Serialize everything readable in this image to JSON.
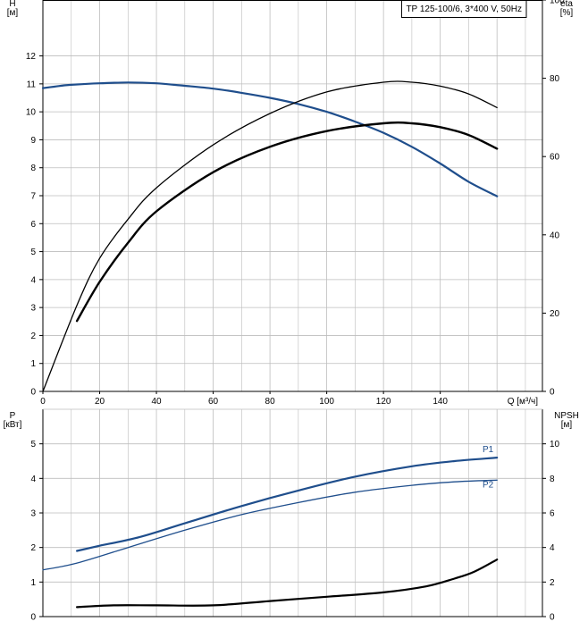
{
  "colors": {
    "grid": "#bdbdbd",
    "axis": "#000000",
    "blue": "#1f4e8c",
    "black": "#000000"
  },
  "chart_data": [
    {
      "type": "line",
      "title": "TP 125-100/6, 3*400 V, 50Hz",
      "xlabel": "Q [м³/ч]",
      "ylabel": "H\n[м]",
      "y2label": "eta\n[%]",
      "xlim": [
        0,
        160
      ],
      "ylim": [
        0,
        14
      ],
      "y2lim": [
        0,
        100
      ],
      "xticks": [
        0,
        20,
        40,
        60,
        80,
        100,
        120,
        140
      ],
      "yticks": [
        0,
        1,
        2,
        3,
        4,
        5,
        6,
        7,
        8,
        9,
        10,
        11,
        12
      ],
      "y2ticks": [
        0,
        20,
        40,
        60,
        80,
        100
      ],
      "grid": true,
      "series": [
        {
          "role": "H",
          "axis": "left",
          "color": "blue",
          "width": 2.2,
          "points": [
            [
              0,
              10.85
            ],
            [
              4,
              10.9
            ],
            [
              8,
              10.95
            ],
            [
              12,
              10.98
            ],
            [
              20,
              11.02
            ],
            [
              30,
              11.05
            ],
            [
              40,
              11.02
            ],
            [
              50,
              10.93
            ],
            [
              60,
              10.83
            ],
            [
              70,
              10.68
            ],
            [
              80,
              10.5
            ],
            [
              90,
              10.28
            ],
            [
              100,
              10.0
            ],
            [
              110,
              9.65
            ],
            [
              120,
              9.25
            ],
            [
              130,
              8.75
            ],
            [
              140,
              8.15
            ],
            [
              150,
              7.5
            ],
            [
              160,
              6.98
            ]
          ]
        },
        {
          "role": "eta pump",
          "axis": "right",
          "color": "black",
          "width": 1.3,
          "points": [
            [
              0,
              0
            ],
            [
              12,
              22
            ],
            [
              20,
              34
            ],
            [
              30,
              44
            ],
            [
              40,
              52
            ],
            [
              60,
              63
            ],
            [
              80,
              71
            ],
            [
              100,
              76.5
            ],
            [
              120,
              79
            ],
            [
              130,
              79
            ],
            [
              140,
              78
            ],
            [
              150,
              76
            ],
            [
              160,
              72.5
            ]
          ]
        },
        {
          "role": "eta total",
          "axis": "right",
          "color": "black",
          "width": 2.4,
          "points": [
            [
              12,
              18
            ],
            [
              20,
              28
            ],
            [
              30,
              38
            ],
            [
              40,
              46
            ],
            [
              60,
              56
            ],
            [
              80,
              62.5
            ],
            [
              100,
              66.5
            ],
            [
              120,
              68.5
            ],
            [
              130,
              68.5
            ],
            [
              140,
              67.5
            ],
            [
              150,
              65.5
            ],
            [
              160,
              62
            ]
          ]
        }
      ]
    },
    {
      "type": "line",
      "xlabel": "",
      "ylabel": "P\n[кВт]",
      "y2label": "NPSH\n[м]",
      "xlim": [
        0,
        160
      ],
      "ylim": [
        0,
        6
      ],
      "y2lim": [
        0,
        12
      ],
      "yticks": [
        0,
        1,
        2,
        3,
        4,
        5
      ],
      "y2ticks": [
        0,
        2,
        4,
        6,
        8,
        10
      ],
      "grid": true,
      "series": [
        {
          "name": "P1",
          "axis": "left",
          "color": "blue",
          "width": 2.2,
          "points": [
            [
              12,
              1.9
            ],
            [
              20,
              2.05
            ],
            [
              34,
              2.3
            ],
            [
              50,
              2.7
            ],
            [
              70,
              3.2
            ],
            [
              90,
              3.65
            ],
            [
              110,
              4.05
            ],
            [
              130,
              4.35
            ],
            [
              145,
              4.5
            ],
            [
              160,
              4.6
            ]
          ]
        },
        {
          "name": "P2",
          "axis": "left",
          "color": "blue",
          "width": 1.3,
          "points": [
            [
              0,
              1.35
            ],
            [
              12,
              1.55
            ],
            [
              30,
              2.0
            ],
            [
              50,
              2.5
            ],
            [
              70,
              2.95
            ],
            [
              90,
              3.3
            ],
            [
              110,
              3.6
            ],
            [
              130,
              3.8
            ],
            [
              145,
              3.9
            ],
            [
              160,
              3.95
            ]
          ]
        },
        {
          "role": "NPSH",
          "axis": "right",
          "color": "black",
          "width": 2.2,
          "points": [
            [
              12,
              0.55
            ],
            [
              25,
              0.65
            ],
            [
              40,
              0.65
            ],
            [
              60,
              0.65
            ],
            [
              80,
              0.9
            ],
            [
              100,
              1.15
            ],
            [
              120,
              1.4
            ],
            [
              135,
              1.75
            ],
            [
              145,
              2.2
            ],
            [
              152,
              2.6
            ],
            [
              160,
              3.3
            ]
          ]
        }
      ]
    }
  ]
}
